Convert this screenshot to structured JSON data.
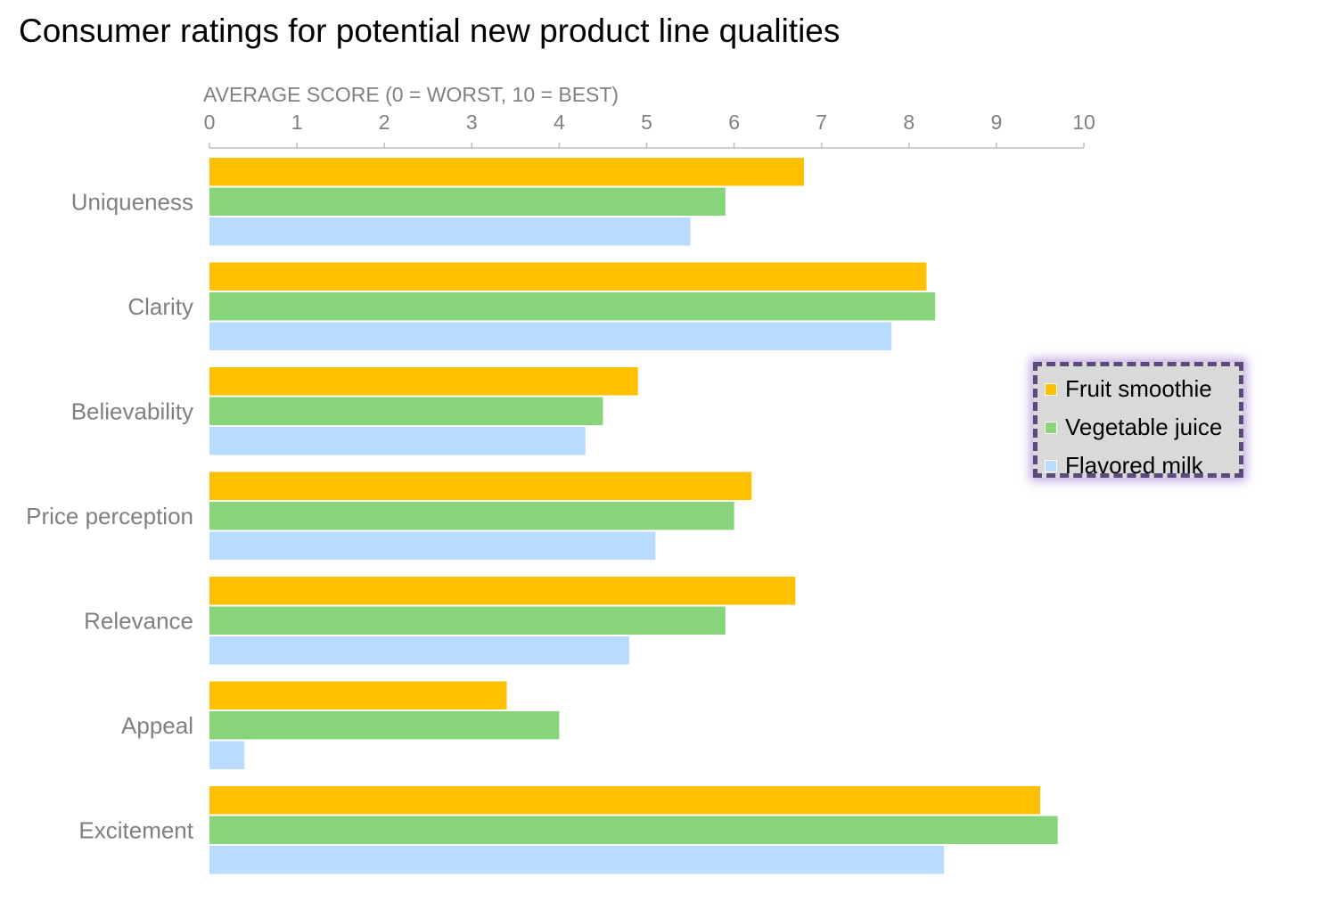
{
  "chart_data": {
    "type": "bar",
    "orientation": "horizontal",
    "title": "Consumer ratings for potential new product line qualities",
    "xlabel": "AVERAGE SCORE (0 = WORST, 10 = BEST)",
    "xlim": [
      0,
      10
    ],
    "x_ticks": [
      "0",
      "1",
      "2",
      "3",
      "4",
      "5",
      "6",
      "7",
      "8",
      "9",
      "10"
    ],
    "x_axis_position": "top",
    "grid": false,
    "legend_position": "right",
    "categories": [
      "Uniqueness",
      "Clarity",
      "Believability",
      "Price perception",
      "Relevance",
      "Appeal",
      "Excitement"
    ],
    "series": [
      {
        "name": "Fruit smoothie",
        "color": "#ffc000",
        "values": [
          6.8,
          8.2,
          4.9,
          6.2,
          6.7,
          3.4,
          9.5
        ]
      },
      {
        "name": "Vegetable juice",
        "color": "#88d47b",
        "values": [
          5.9,
          8.3,
          4.5,
          6.0,
          5.9,
          4.0,
          9.7
        ]
      },
      {
        "name": "Flavored milk",
        "color": "#b8dcff",
        "values": [
          5.5,
          7.8,
          4.3,
          5.1,
          4.8,
          0.4,
          8.4
        ]
      }
    ]
  }
}
